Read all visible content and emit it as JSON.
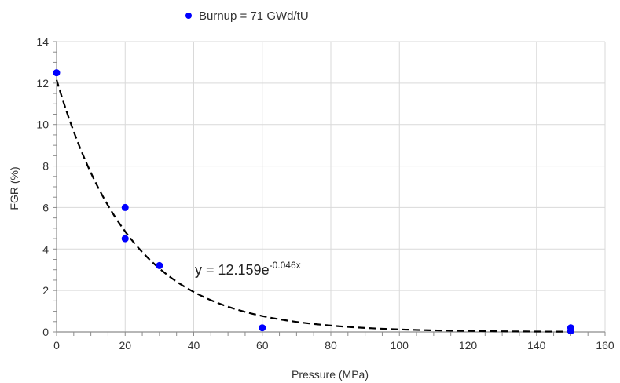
{
  "chart_data": {
    "type": "scatter",
    "title": "",
    "xlabel": "Pressure (MPa)",
    "ylabel": "FGR (%)",
    "xlim": [
      0,
      160
    ],
    "ylim": [
      0,
      14
    ],
    "x_ticks": [
      0,
      20,
      40,
      60,
      80,
      100,
      120,
      140,
      160
    ],
    "y_ticks": [
      0,
      2,
      4,
      6,
      8,
      10,
      12,
      14
    ],
    "grid": true,
    "legend_position": "top-center",
    "series": [
      {
        "name": "Burnup = 71 GWd/tU",
        "color": "#0000ff",
        "marker": "circle",
        "points": [
          {
            "x": 0,
            "y": 12.5
          },
          {
            "x": 20,
            "y": 6.0
          },
          {
            "x": 20,
            "y": 4.5
          },
          {
            "x": 30,
            "y": 3.2
          },
          {
            "x": 60,
            "y": 0.2
          },
          {
            "x": 150,
            "y": 0.2
          },
          {
            "x": 150,
            "y": 0.05
          }
        ]
      }
    ],
    "trendline": {
      "type": "exponential",
      "a": 12.159,
      "b": -0.046,
      "x_range": [
        0,
        150
      ],
      "style": "dashed",
      "color": "#000000",
      "label": {
        "base": "y = 12.159e",
        "exponent": "-0.046x"
      }
    }
  }
}
